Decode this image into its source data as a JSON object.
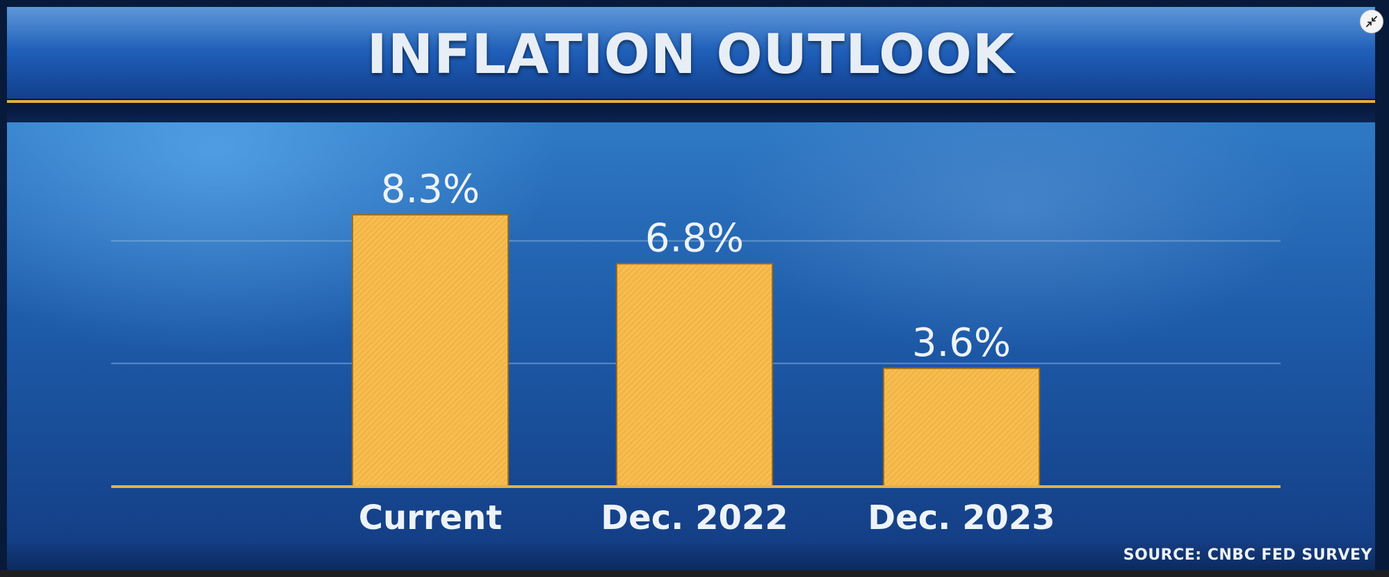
{
  "colors": {
    "bar_fill": "#f7bc4f",
    "bar_stroke": "#9c6d18",
    "axis_line": "#e1b24a",
    "grid_line": "#8fb6e0",
    "text": "#eef3f8"
  },
  "controls": {
    "collapse_icon": "collapse-arrows-icon"
  },
  "chart_data": {
    "type": "bar",
    "title": "INFLATION OUTLOOK",
    "categories": [
      "Current",
      "Dec. 2022",
      "Dec. 2023"
    ],
    "values": [
      8.3,
      6.8,
      3.6
    ],
    "value_labels": [
      "8.3%",
      "6.8%",
      "3.6%"
    ],
    "ylim": [
      0,
      10
    ],
    "gridlines": [
      3.75,
      7.5
    ],
    "source": "SOURCE: CNBC FED SURVEY",
    "legend": "none"
  }
}
